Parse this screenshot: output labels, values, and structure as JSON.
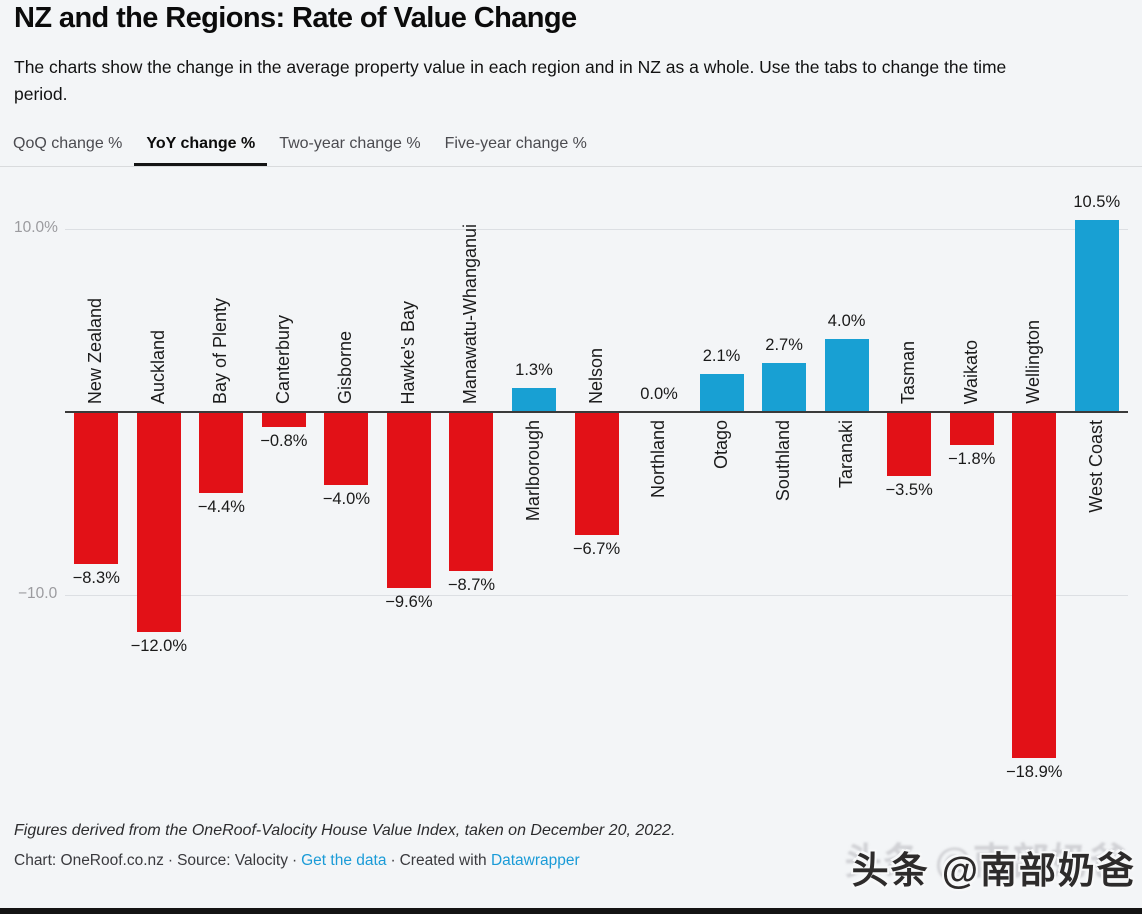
{
  "header": {
    "title": "NZ and the Regions: Rate of Value Change",
    "description": "The charts show the change in the average property value in each region and in NZ as a whole. Use the tabs to change the time period."
  },
  "tabs": [
    {
      "label": "QoQ change %",
      "active": false
    },
    {
      "label": "YoY change %",
      "active": true
    },
    {
      "label": "Two-year change %",
      "active": false
    },
    {
      "label": "Five-year change %",
      "active": false
    }
  ],
  "chart_data": {
    "type": "bar",
    "title": "NZ and the Regions: Rate of Value Change",
    "subtitle": "YoY change %",
    "categories": [
      "New Zealand",
      "Auckland",
      "Bay of Plenty",
      "Canterbury",
      "Gisborne",
      "Hawke's Bay",
      "Manawatu-Whanganui",
      "Marlborough",
      "Nelson",
      "Northland",
      "Otago",
      "Southland",
      "Taranaki",
      "Tasman",
      "Waikato",
      "Wellington",
      "West Coast"
    ],
    "values": [
      -8.3,
      -12.0,
      -4.4,
      -0.8,
      -4.0,
      -9.6,
      -8.7,
      1.3,
      -6.7,
      0.0,
      2.1,
      2.7,
      4.0,
      -3.5,
      -1.8,
      -18.9,
      10.5
    ],
    "value_labels": [
      "−8.3%",
      "−12.0%",
      "−4.4%",
      "−0.8%",
      "−4.0%",
      "−9.6%",
      "−8.7%",
      "1.3%",
      "−6.7%",
      "0.0%",
      "2.1%",
      "2.7%",
      "4.0%",
      "−3.5%",
      "−1.8%",
      "−18.9%",
      "10.5%"
    ],
    "xlabel": "",
    "ylabel": "",
    "ylim": [
      -20,
      12
    ],
    "yticks": [
      {
        "value": 10,
        "label": "10.0%"
      },
      {
        "value": -10,
        "label": "−10.0"
      }
    ],
    "grid": true,
    "legend": "none",
    "colors": {
      "positive": "#18a0d3",
      "negative": "#e21117",
      "axis": "#3a3a3a",
      "gridline": "#dcdfe3"
    }
  },
  "footer": {
    "note": "Figures derived from the OneRoof-Valocity House Value Index, taken on December 20, 2022.",
    "chart_credit": "Chart: OneRoof.co.nz",
    "source_credit": "Source: Valocity",
    "get_data_link": "Get the data",
    "created_with": "Created with",
    "tool_link": "Datawrapper",
    "separator": "·"
  },
  "watermark": {
    "text": "头条 @南部奶爸"
  }
}
